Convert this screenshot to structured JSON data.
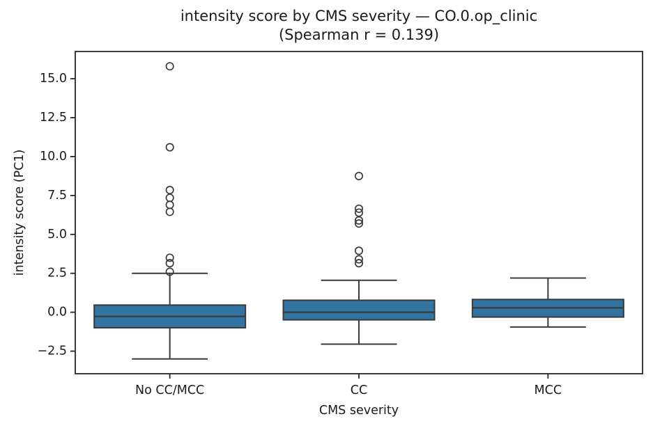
{
  "title": {
    "line1": "intensity score by CMS severity — CO.0.op_clinic",
    "line2": "(Spearman r = 0.139)"
  },
  "chart_data": {
    "type": "box",
    "title": "intensity score by CMS severity — CO.0.op_clinic",
    "subtitle": "(Spearman r = 0.139)",
    "xlabel": "CMS severity",
    "ylabel": "intensity score (PC1)",
    "categories": [
      "No CC/MCC",
      "CC",
      "MCC"
    ],
    "yticks": [
      -2.5,
      0.0,
      2.5,
      5.0,
      7.5,
      10.0,
      12.5,
      15.0
    ],
    "ylim": [
      -3.95,
      16.75
    ],
    "grid": false,
    "legend": "none",
    "series": [
      {
        "category": "No CC/MCC",
        "whisker_low": -3.0,
        "q1": -1.0,
        "median": -0.27,
        "q3": 0.46,
        "whisker_high": 2.5,
        "outliers": [
          15.8,
          10.6,
          7.85,
          7.35,
          6.9,
          6.45,
          3.5,
          3.15,
          2.6
        ]
      },
      {
        "category": "CC",
        "whisker_low": -2.05,
        "q1": -0.49,
        "median": 0.0,
        "q3": 0.77,
        "whisker_high": 2.05,
        "outliers": [
          8.75,
          6.65,
          6.4,
          5.9,
          5.7,
          3.95,
          3.4,
          3.15
        ]
      },
      {
        "category": "MCC",
        "whisker_low": -0.95,
        "q1": -0.31,
        "median": 0.28,
        "q3": 0.82,
        "whisker_high": 2.2,
        "outliers": []
      }
    ],
    "colors": {
      "box_fill": "#3274a1",
      "box_line": "#3a3a3a",
      "spine": "#262626",
      "text": "#1a1a1a"
    }
  }
}
